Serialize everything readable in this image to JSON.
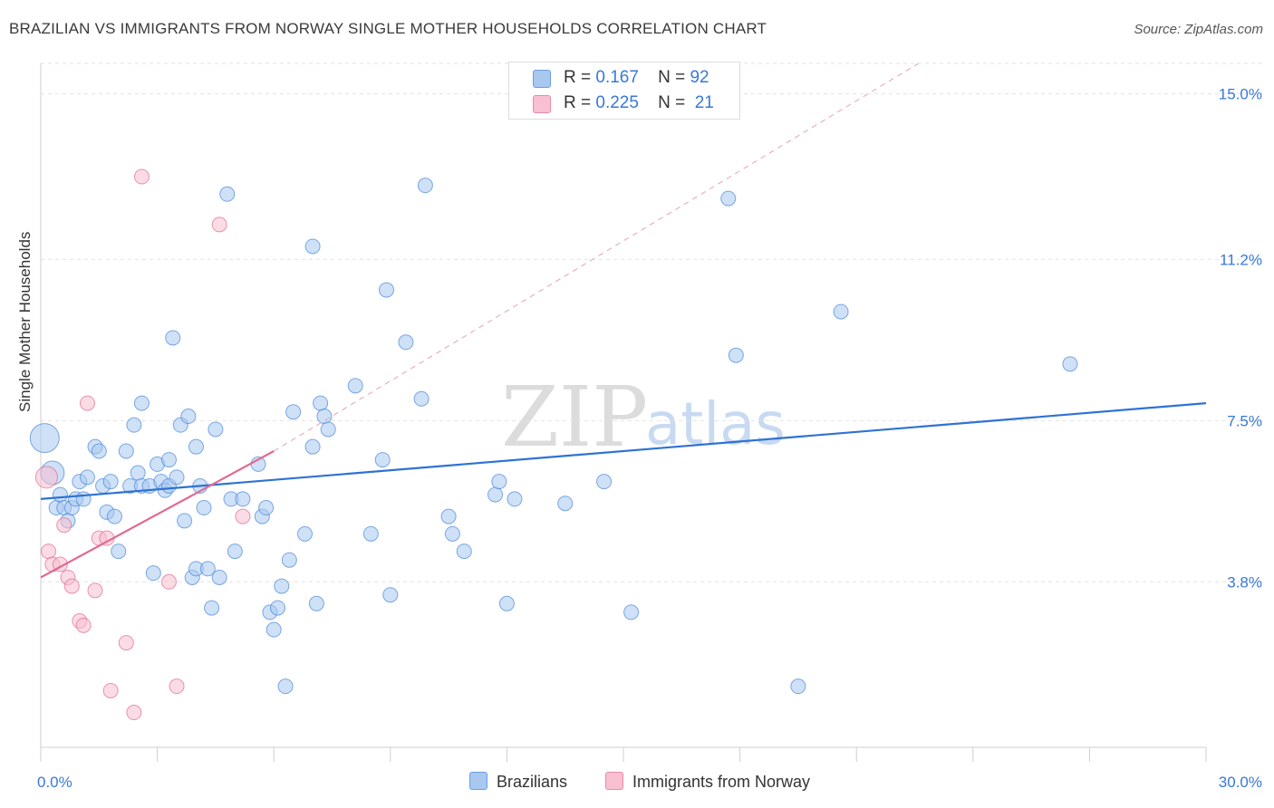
{
  "title": "BRAZILIAN VS IMMIGRANTS FROM NORWAY SINGLE MOTHER HOUSEHOLDS CORRELATION CHART",
  "source": "Source: ZipAtlas.com",
  "watermark": {
    "zip": "ZIP",
    "atlas": "atlas"
  },
  "legend": {
    "r_label": "R =",
    "n_label": "N =",
    "rows": [
      {
        "series": "Brazilians",
        "r": "0.167",
        "n": "92",
        "color": "#a8c8f0",
        "border": "#6a9fe0"
      },
      {
        "series": "Immigrants from Norway",
        "r": "0.225",
        "n": "21",
        "color": "#f8c0d0",
        "border": "#e88aa8"
      }
    ]
  },
  "chart_data": {
    "type": "scatter",
    "title": "BRAZILIAN VS IMMIGRANTS FROM NORWAY SINGLE MOTHER HOUSEHOLDS CORRELATION CHART",
    "xlabel": "",
    "ylabel": "Single Mother Households",
    "xlim": [
      0,
      30
    ],
    "ylim": [
      0,
      15.7
    ],
    "x_tick_labels": [
      "0.0%",
      "30.0%"
    ],
    "y_ticks": [
      3.8,
      7.5,
      11.2,
      15.0
    ],
    "y_tick_labels": [
      "3.8%",
      "7.5%",
      "11.2%",
      "15.0%"
    ],
    "grid": true,
    "series": [
      {
        "name": "Brazilians",
        "color": "#4a86d8",
        "fill": "#a8c8f0",
        "trend": {
          "x": [
            0,
            30
          ],
          "y": [
            5.7,
            7.9
          ]
        },
        "points": [
          [
            0.1,
            7.1
          ],
          [
            0.3,
            6.3
          ],
          [
            0.4,
            5.5
          ],
          [
            0.5,
            5.8
          ],
          [
            0.6,
            5.5
          ],
          [
            0.7,
            5.2
          ],
          [
            0.8,
            5.5
          ],
          [
            0.9,
            5.7
          ],
          [
            1.0,
            6.1
          ],
          [
            1.1,
            5.7
          ],
          [
            1.2,
            6.2
          ],
          [
            1.4,
            6.9
          ],
          [
            1.5,
            6.8
          ],
          [
            1.6,
            6.0
          ],
          [
            1.7,
            5.4
          ],
          [
            1.8,
            6.1
          ],
          [
            1.9,
            5.3
          ],
          [
            2.0,
            4.5
          ],
          [
            2.2,
            6.8
          ],
          [
            2.3,
            6.0
          ],
          [
            2.4,
            7.4
          ],
          [
            2.5,
            6.3
          ],
          [
            2.6,
            6.0
          ],
          [
            2.6,
            7.9
          ],
          [
            2.8,
            6.0
          ],
          [
            2.9,
            4.0
          ],
          [
            3.0,
            6.5
          ],
          [
            3.1,
            6.1
          ],
          [
            3.2,
            5.9
          ],
          [
            3.3,
            6.0
          ],
          [
            3.3,
            6.6
          ],
          [
            3.4,
            9.4
          ],
          [
            3.5,
            6.2
          ],
          [
            3.6,
            7.4
          ],
          [
            3.7,
            5.2
          ],
          [
            3.8,
            7.6
          ],
          [
            3.9,
            3.9
          ],
          [
            4.0,
            6.9
          ],
          [
            4.0,
            4.1
          ],
          [
            4.1,
            6.0
          ],
          [
            4.2,
            5.5
          ],
          [
            4.3,
            4.1
          ],
          [
            4.4,
            3.2
          ],
          [
            4.5,
            7.3
          ],
          [
            4.6,
            3.9
          ],
          [
            4.8,
            12.7
          ],
          [
            4.9,
            5.7
          ],
          [
            5.0,
            4.5
          ],
          [
            5.2,
            5.7
          ],
          [
            5.6,
            6.5
          ],
          [
            5.7,
            5.3
          ],
          [
            5.8,
            5.5
          ],
          [
            5.9,
            3.1
          ],
          [
            6.0,
            2.7
          ],
          [
            6.1,
            3.2
          ],
          [
            6.2,
            3.7
          ],
          [
            6.3,
            1.4
          ],
          [
            6.4,
            4.3
          ],
          [
            6.5,
            7.7
          ],
          [
            6.8,
            4.9
          ],
          [
            7.0,
            11.5
          ],
          [
            7.0,
            6.9
          ],
          [
            7.1,
            3.3
          ],
          [
            7.2,
            7.9
          ],
          [
            7.3,
            7.6
          ],
          [
            7.4,
            7.3
          ],
          [
            8.1,
            8.3
          ],
          [
            8.5,
            4.9
          ],
          [
            8.8,
            6.6
          ],
          [
            8.9,
            10.5
          ],
          [
            9.0,
            3.5
          ],
          [
            9.4,
            9.3
          ],
          [
            9.8,
            8.0
          ],
          [
            9.9,
            12.9
          ],
          [
            10.5,
            5.3
          ],
          [
            10.6,
            4.9
          ],
          [
            10.9,
            4.5
          ],
          [
            11.7,
            5.8
          ],
          [
            11.8,
            6.1
          ],
          [
            12.0,
            3.3
          ],
          [
            12.2,
            5.7
          ],
          [
            13.5,
            5.6
          ],
          [
            14.5,
            6.1
          ],
          [
            15.2,
            3.1
          ],
          [
            17.7,
            12.6
          ],
          [
            17.9,
            9.0
          ],
          [
            19.5,
            1.4
          ],
          [
            20.6,
            10.0
          ],
          [
            26.5,
            8.8
          ]
        ]
      },
      {
        "name": "Immigrants from Norway",
        "color": "#e06a92",
        "fill": "#f8c0d0",
        "trend": {
          "x": [
            0,
            6.0
          ],
          "y": [
            3.9,
            6.8
          ]
        },
        "trend_dashed": {
          "x": [
            6.0,
            22.6
          ],
          "y": [
            6.8,
            15.7
          ]
        },
        "points": [
          [
            0.15,
            6.2
          ],
          [
            0.2,
            4.5
          ],
          [
            0.3,
            4.2
          ],
          [
            0.5,
            4.2
          ],
          [
            0.6,
            5.1
          ],
          [
            0.7,
            3.9
          ],
          [
            0.8,
            3.7
          ],
          [
            1.0,
            2.9
          ],
          [
            1.1,
            2.8
          ],
          [
            1.2,
            7.9
          ],
          [
            1.4,
            3.6
          ],
          [
            1.5,
            4.8
          ],
          [
            1.7,
            4.8
          ],
          [
            1.8,
            1.3
          ],
          [
            2.2,
            2.4
          ],
          [
            2.4,
            0.8
          ],
          [
            2.6,
            13.1
          ],
          [
            3.3,
            3.8
          ],
          [
            3.5,
            1.4
          ],
          [
            4.6,
            12.0
          ],
          [
            5.2,
            5.3
          ]
        ]
      }
    ]
  }
}
